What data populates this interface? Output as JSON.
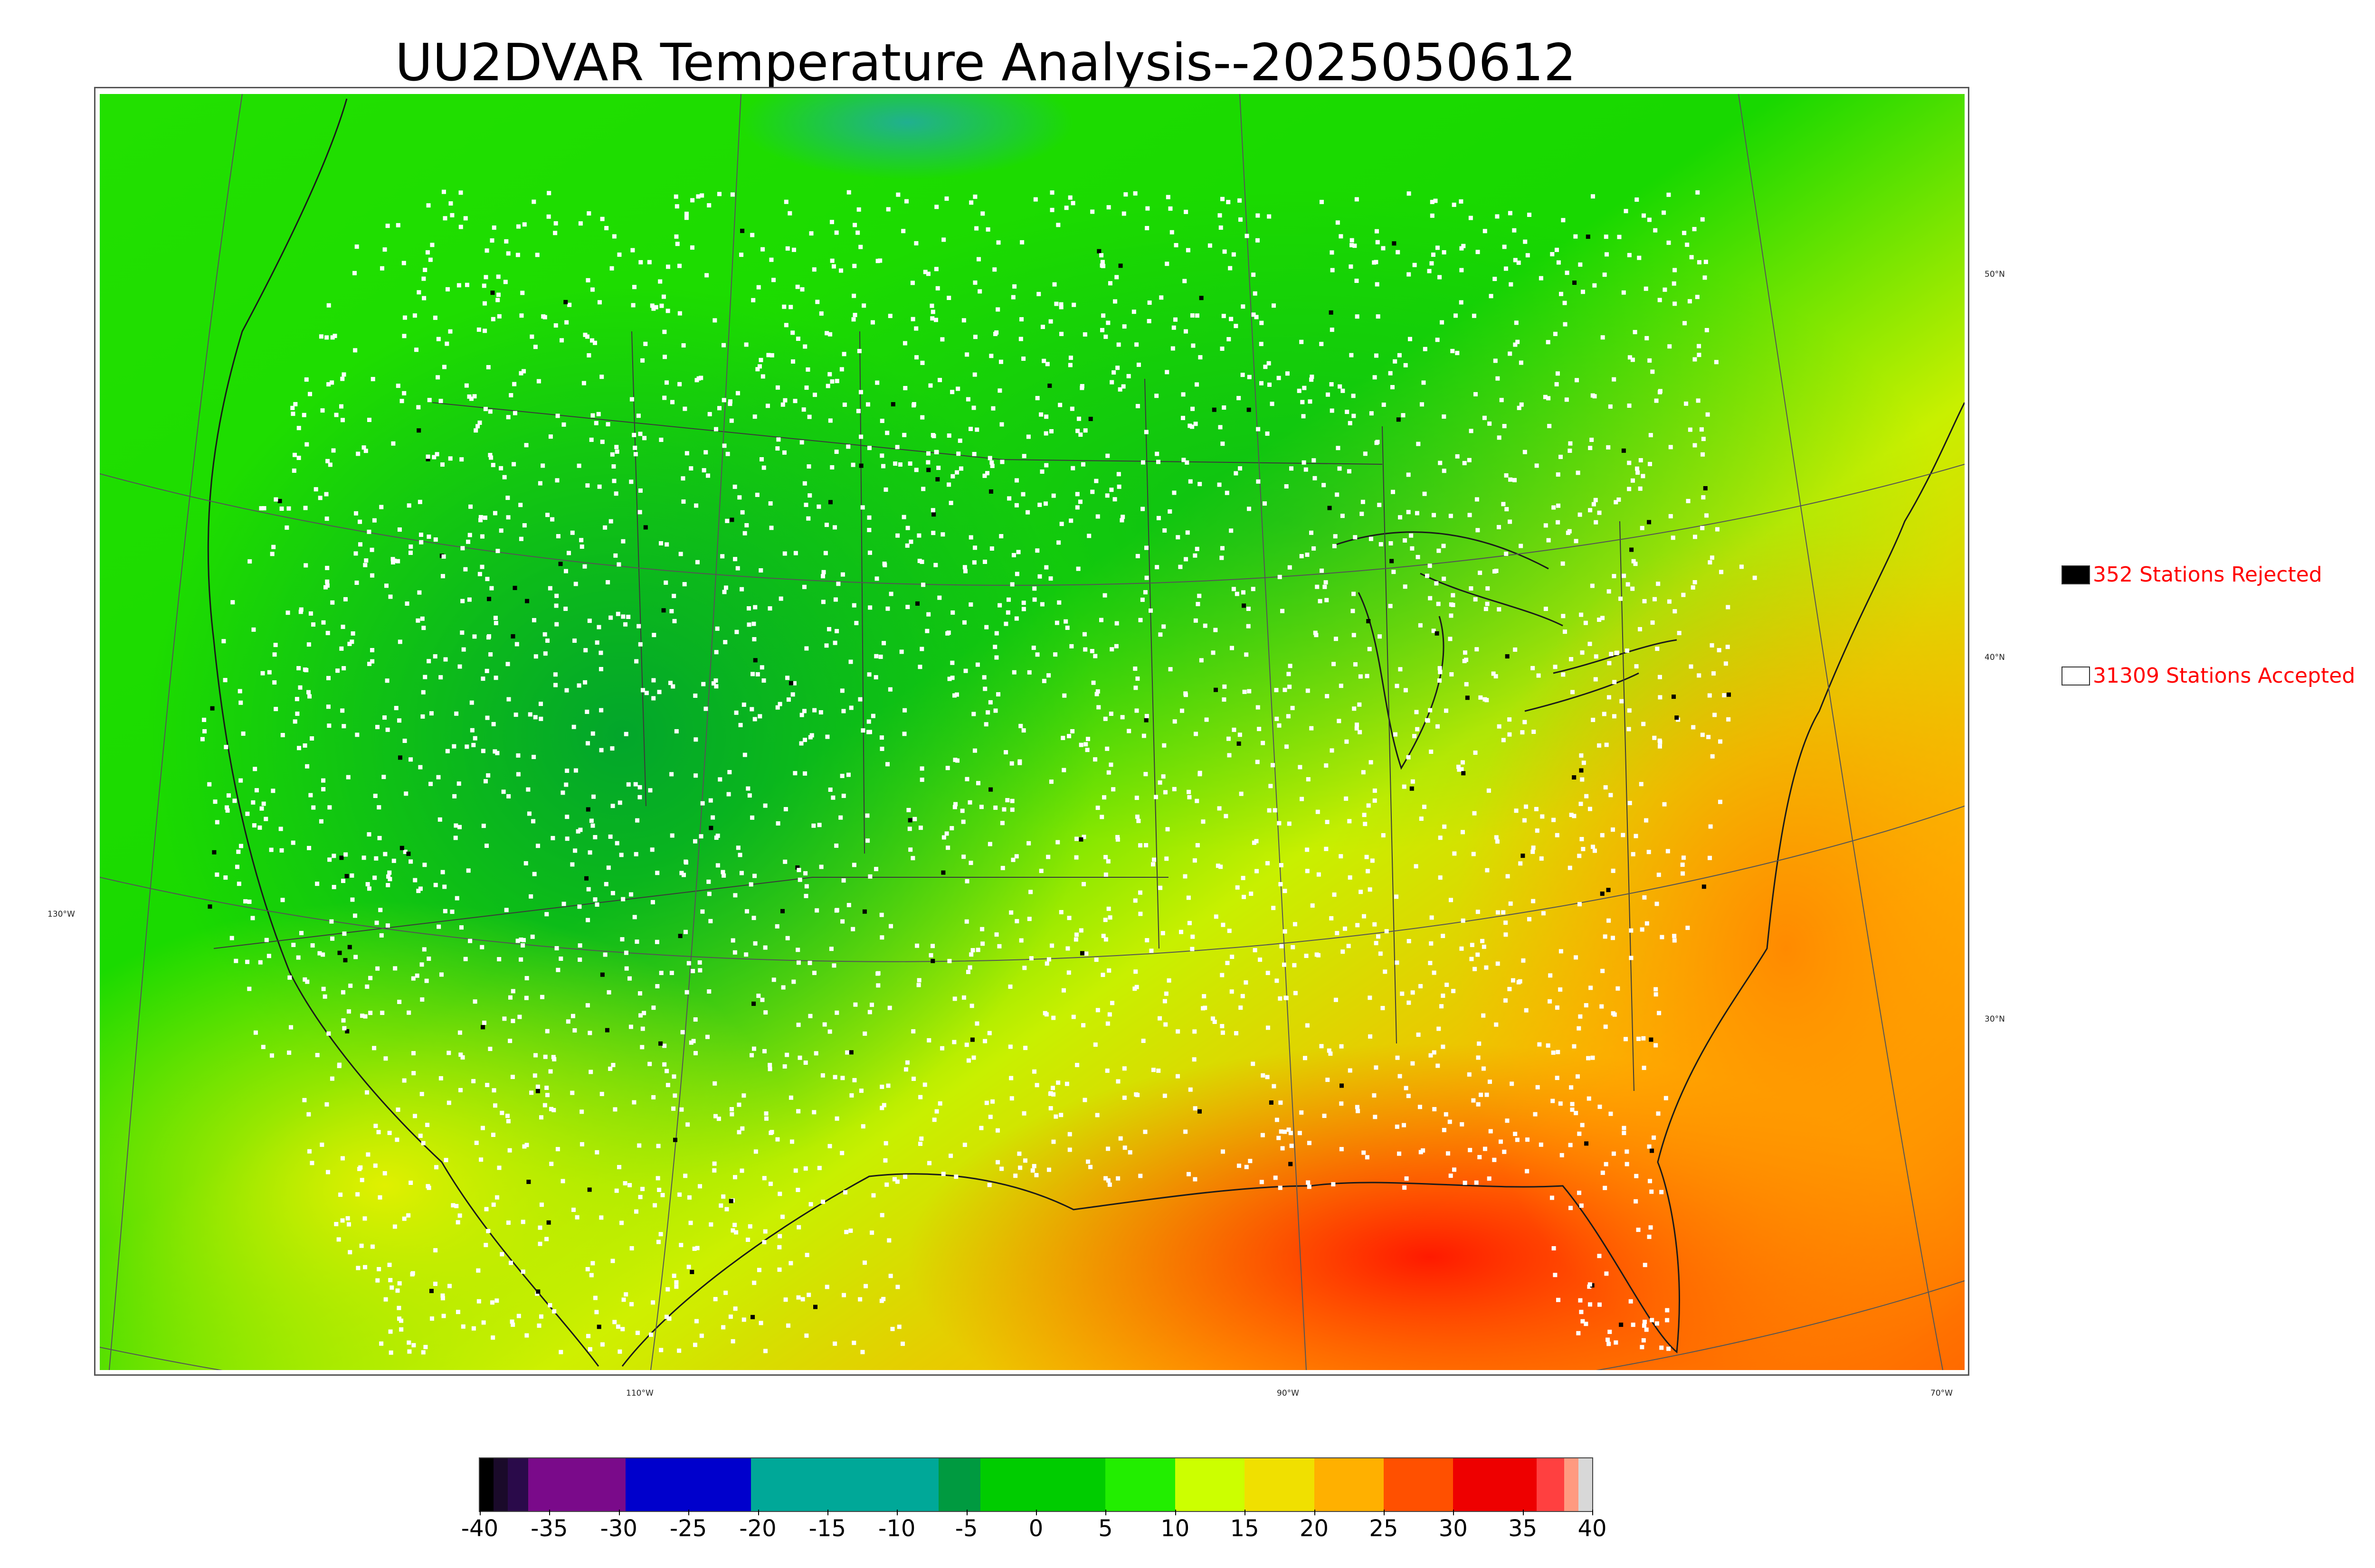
{
  "title": "UU2DVAR Temperature Analysis--2025050612",
  "lat_labels": [
    "50°N",
    "40°N",
    "30°N"
  ],
  "lon_labels": [
    "130°W",
    "110°W",
    "90°W",
    "70°W"
  ],
  "legend": {
    "rejected": {
      "label": "352 Stations Rejected",
      "color": "#000000"
    },
    "accepted": {
      "label": "31309 Stations Accepted",
      "color": "#ffffff"
    }
  },
  "colorbar": {
    "ticks": [
      "-40",
      "-35",
      "-30",
      "-25",
      "-20",
      "-15",
      "-10",
      "-5",
      "0",
      "5",
      "10",
      "15",
      "20",
      "25",
      "30",
      "35",
      "40"
    ],
    "colors": [
      {
        "from": -40,
        "to": -39,
        "color": "#000000"
      },
      {
        "from": -39,
        "to": -38,
        "color": "#1a0a2a"
      },
      {
        "from": -38,
        "to": -36.5,
        "color": "#2a0a4a"
      },
      {
        "from": -36.5,
        "to": -29.5,
        "color": "#7a0a8a"
      },
      {
        "from": -29.5,
        "to": -20.5,
        "color": "#0000cc"
      },
      {
        "from": -20.5,
        "to": -7,
        "color": "#00a898"
      },
      {
        "from": -7,
        "to": -4,
        "color": "#009a40"
      },
      {
        "from": -4,
        "to": 5,
        "color": "#00cc00"
      },
      {
        "from": 5,
        "to": 10,
        "color": "#22ee00"
      },
      {
        "from": 10,
        "to": 15,
        "color": "#ccff00"
      },
      {
        "from": 15,
        "to": 20,
        "color": "#f0e000"
      },
      {
        "from": 20,
        "to": 25,
        "color": "#ffb000"
      },
      {
        "from": 25,
        "to": 30,
        "color": "#ff5000"
      },
      {
        "from": 30,
        "to": 36,
        "color": "#ee0000"
      },
      {
        "from": 36,
        "to": 38,
        "color": "#ff4040"
      },
      {
        "from": 38,
        "to": 39,
        "color": "#ff9a80"
      },
      {
        "from": 39,
        "to": 40,
        "color": "#d8d8d8"
      }
    ]
  }
}
